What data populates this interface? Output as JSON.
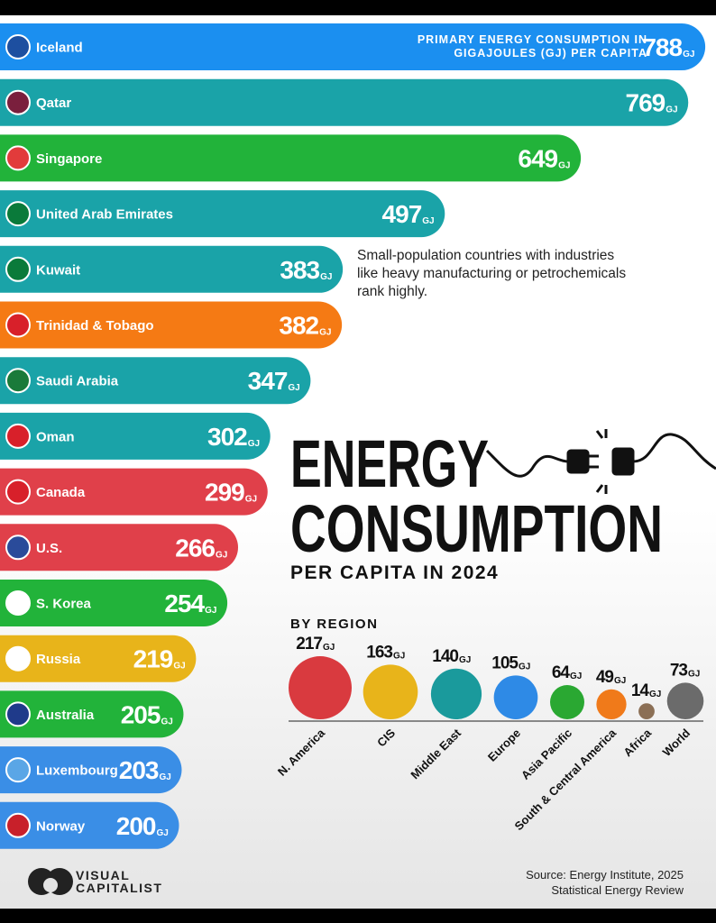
{
  "chart_data": [
    {
      "type": "bar",
      "title": [
        "ENERGY",
        "CONSUMPTION"
      ],
      "subtitle": "PER CAPITA IN 2024",
      "value_axis_label": "PRIMARY ENERGY CONSUMPTION IN GIGAJOULES (GJ) PER CAPITA",
      "unit": "GJ",
      "annotation": "Small-population countries with industries like heavy manufacturing or petrochemicals rank highly.",
      "categories": [
        "Iceland",
        "Qatar",
        "Singapore",
        "United Arab Emirates",
        "Kuwait",
        "Trinidad & Tobago",
        "Saudi Arabia",
        "Oman",
        "Canada",
        "U.S.",
        "S. Korea",
        "Russia",
        "Australia",
        "Luxembourg",
        "Norway"
      ],
      "values": [
        788,
        769,
        649,
        497,
        383,
        382,
        347,
        302,
        299,
        266,
        254,
        219,
        205,
        203,
        200
      ],
      "colors": [
        "#1b8ff0",
        "#1aa3a8",
        "#22b33a",
        "#1aa3a8",
        "#1aa3a8",
        "#f57a14",
        "#1aa3a8",
        "#1aa3a8",
        "#e0404a",
        "#e0404a",
        "#22b33a",
        "#e8b41a",
        "#22b33a",
        "#3a8ee6",
        "#3a8ee6"
      ],
      "xlim": [
        0,
        800
      ]
    },
    {
      "type": "bubble",
      "title": "BY REGION",
      "unit": "GJ",
      "categories": [
        "N. America",
        "CIS",
        "Middle East",
        "Europe",
        "Asia Pacific",
        "South & Central America",
        "Africa",
        "World"
      ],
      "values": [
        217,
        163,
        140,
        105,
        64,
        49,
        14,
        73
      ],
      "colors": [
        "#d93a3f",
        "#e8b41a",
        "#1a9a9c",
        "#2e8ae6",
        "#2aa832",
        "#f07a1a",
        "#8b6f55",
        "#6b6b6b"
      ]
    }
  ],
  "footer": {
    "brand": "VISUAL CAPITALIST",
    "source": "Source: Energy Institute, 2025 Statistical Energy Review"
  }
}
